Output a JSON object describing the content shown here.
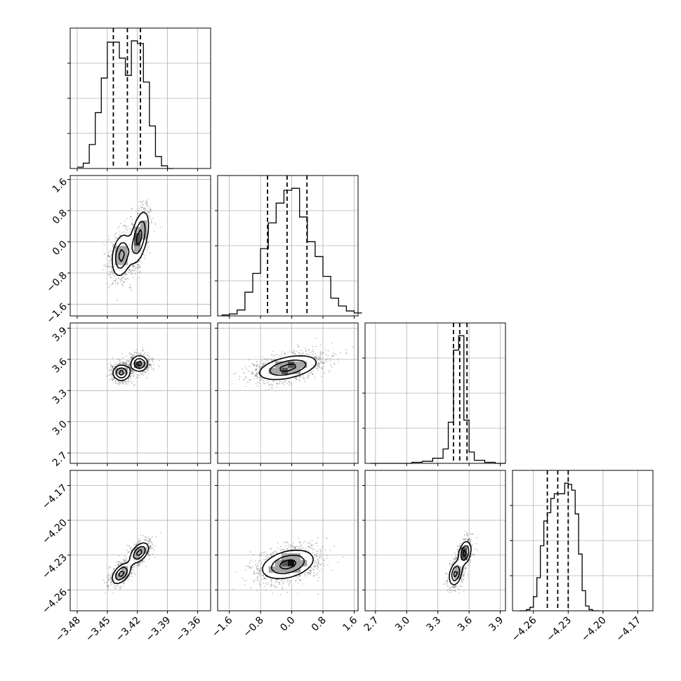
{
  "chart_data": {
    "type": "corner",
    "title": "",
    "parameters": [
      {
        "name": "",
        "range": [
          -3.487,
          -3.347
        ],
        "ticks": [
          -3.48,
          -3.45,
          -3.42,
          -3.39,
          -3.36
        ],
        "tick_labels": [
          "−3.48",
          "−3.45",
          "−3.42",
          "−3.39",
          "−3.36"
        ]
      },
      {
        "name": "",
        "range": [
          -1.9,
          1.7
        ],
        "ticks": [
          -1.6,
          -0.8,
          0.0,
          0.8,
          1.6
        ],
        "tick_labels": [
          "−1.6",
          "−0.8",
          "0.0",
          "0.8",
          "1.6"
        ]
      },
      {
        "name": "",
        "range": [
          2.6,
          3.95
        ],
        "ticks": [
          2.7,
          3.0,
          3.3,
          3.6,
          3.9
        ],
        "tick_labels": [
          "2.7",
          "3.0",
          "3.3",
          "3.6",
          "3.9"
        ]
      },
      {
        "name": "",
        "range": [
          -4.278,
          -4.157
        ],
        "ticks": [
          -4.26,
          -4.23,
          -4.2,
          -4.17
        ],
        "tick_labels": [
          "−4.26",
          "−4.23",
          "−4.20",
          "−4.17"
        ]
      }
    ],
    "histograms": [
      {
        "param": 0,
        "bin_edges": [
          -3.48,
          -3.474,
          -3.468,
          -3.462,
          -3.456,
          -3.45,
          -3.444,
          -3.438,
          -3.432,
          -3.426,
          -3.42,
          -3.414,
          -3.408,
          -3.402,
          -3.396,
          -3.39,
          -3.384
        ],
        "counts": [
          1,
          4,
          18,
          42,
          68,
          95,
          95,
          83,
          70,
          96,
          94,
          65,
          32,
          9,
          2,
          0
        ],
        "quantiles": [
          -3.444,
          -3.43,
          -3.417
        ]
      },
      {
        "param": 1,
        "bin_edges": [
          -1.8,
          -1.6,
          -1.4,
          -1.2,
          -1.0,
          -0.8,
          -0.6,
          -0.4,
          -0.2,
          0.0,
          0.2,
          0.4,
          0.6,
          0.8,
          1.0,
          1.2,
          1.4,
          1.6,
          1.8
        ],
        "counts": [
          1,
          2,
          6,
          24,
          43,
          68,
          94,
          114,
          127,
          129,
          100,
          75,
          60,
          40,
          18,
          10,
          5,
          3
        ],
        "quantiles": [
          -0.62,
          -0.12,
          0.39
        ]
      },
      {
        "param": 2,
        "bin_edges": [
          2.65,
          2.75,
          2.85,
          2.95,
          3.05,
          3.15,
          3.25,
          3.35,
          3.4,
          3.45,
          3.5,
          3.55,
          3.6,
          3.65,
          3.75,
          3.85,
          3.95
        ],
        "counts": [
          0,
          0,
          0,
          0,
          1,
          2,
          5,
          14,
          40,
          110,
          124,
          42,
          11,
          3,
          1,
          0
        ],
        "quantiles": [
          3.45,
          3.51,
          3.58
        ]
      },
      {
        "param": 3,
        "bin_edges": [
          -4.272,
          -4.269,
          -4.266,
          -4.263,
          -4.26,
          -4.257,
          -4.254,
          -4.251,
          -4.248,
          -4.245,
          -4.242,
          -4.239,
          -4.236,
          -4.233,
          -4.23,
          -4.227,
          -4.224,
          -4.221,
          -4.218,
          -4.215,
          -4.212,
          -4.209,
          -4.206,
          -4.203
        ],
        "counts": [
          0,
          0,
          1,
          3,
          12,
          28,
          55,
          76,
          83,
          95,
          99,
          99,
          99,
          108,
          107,
          102,
          82,
          48,
          17,
          4,
          1,
          0,
          0
        ],
        "quantiles": [
          -4.248,
          -4.239,
          -4.23
        ]
      }
    ],
    "pairs": [
      {
        "x_param": 0,
        "y_param": 1,
        "clusters": [
          {
            "cx": -3.436,
            "cy": -0.35,
            "sx": 0.0055,
            "sy": 0.32,
            "rho": 0.25,
            "w": 1
          },
          {
            "cx": -3.418,
            "cy": 0.12,
            "sx": 0.0055,
            "sy": 0.4,
            "rho": 0.5,
            "w": 1
          }
        ]
      },
      {
        "x_param": 0,
        "y_param": 2,
        "clusters": [
          {
            "cx": -3.436,
            "cy": 3.47,
            "sx": 0.005,
            "sy": 0.045,
            "rho": 0.0,
            "w": 1
          },
          {
            "cx": -3.418,
            "cy": 3.56,
            "sx": 0.005,
            "sy": 0.045,
            "rho": 0.0,
            "w": 1
          }
        ]
      },
      {
        "x_param": 1,
        "y_param": 2,
        "clusters": [
          {
            "cx": -0.1,
            "cy": 3.52,
            "sx": 0.45,
            "sy": 0.07,
            "rho": 0.45,
            "w": 1
          }
        ]
      },
      {
        "x_param": 0,
        "y_param": 3,
        "clusters": [
          {
            "cx": -3.436,
            "cy": -4.246,
            "sx": 0.0055,
            "sy": 0.0052,
            "rho": 0.5,
            "w": 1
          },
          {
            "cx": -3.418,
            "cy": -4.228,
            "sx": 0.0055,
            "sy": 0.0052,
            "rho": 0.5,
            "w": 1
          }
        ]
      },
      {
        "x_param": 1,
        "y_param": 3,
        "clusters": [
          {
            "cx": -0.1,
            "cy": -4.238,
            "sx": 0.4,
            "sy": 0.0075,
            "rho": 0.35,
            "w": 1
          }
        ]
      },
      {
        "x_param": 2,
        "y_param": 3,
        "clusters": [
          {
            "cx": 3.47,
            "cy": -4.246,
            "sx": 0.035,
            "sy": 0.006,
            "rho": 0.3,
            "w": 1
          },
          {
            "cx": 3.56,
            "cy": -4.228,
            "sx": 0.035,
            "sy": 0.006,
            "rho": 0.3,
            "w": 1
          }
        ]
      }
    ],
    "contour_levels": [
      0.88,
      0.58,
      0.27
    ],
    "grid": true
  }
}
